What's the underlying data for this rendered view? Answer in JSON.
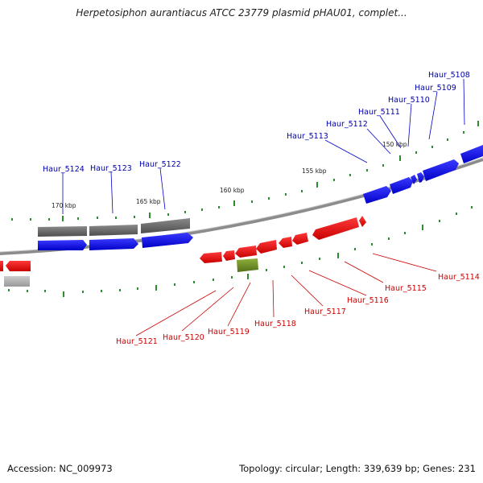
{
  "title": "Herpetosiphon aurantiacus ATCC 23779 plasmid pHAU01, complet...",
  "footer": {
    "accession": "Accession: NC_009973",
    "summary": "Topology: circular; Length: 339,639 bp; Genes: 231"
  },
  "colors": {
    "forward_gene": "#0000ee",
    "reverse_gene": "#ee0000",
    "forward_label": "#0000aa",
    "reverse_label": "#cc0000",
    "gray_feature": "#666666",
    "olive_feature": "#6b8e23",
    "tick": "#2e8b2e",
    "backbone": "#888888"
  },
  "kbp_labels": [
    "150 kbp",
    "155 kbp",
    "160 kbp",
    "165 kbp",
    "170 kbp"
  ],
  "forward_labels": [
    "Haur_5108",
    "Haur_5109",
    "Haur_5110",
    "Haur_5111",
    "Haur_5112",
    "Haur_5113",
    "Haur_5122",
    "Haur_5123",
    "Haur_5124"
  ],
  "reverse_labels": [
    "Haur_5114",
    "Haur_5115",
    "Haur_5116",
    "Haur_5117",
    "Haur_5118",
    "Haur_5119",
    "Haur_5120",
    "Haur_5121"
  ]
}
